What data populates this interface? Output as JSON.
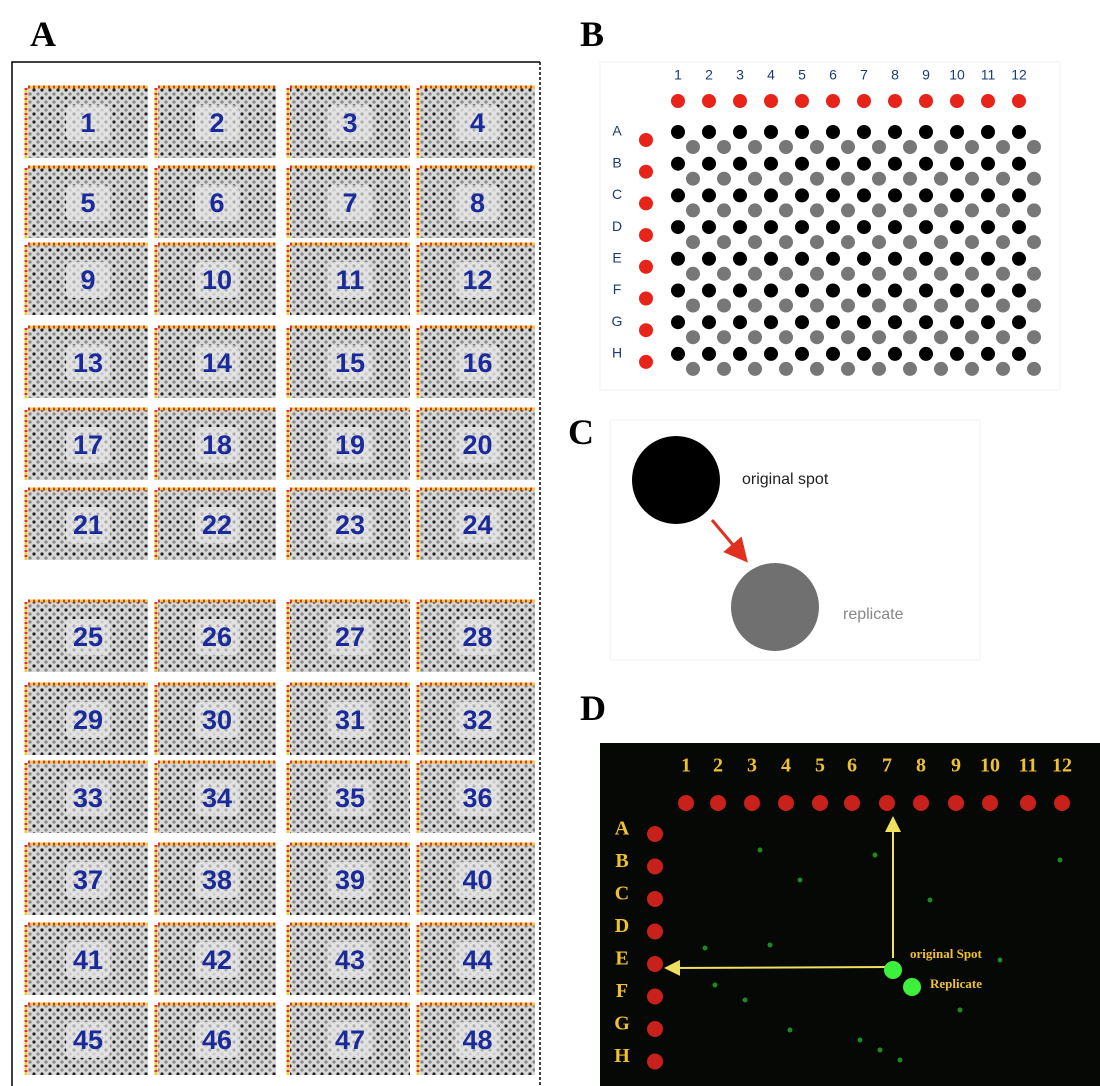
{
  "panels": {
    "A": {
      "label": "A",
      "blocks": [
        1,
        2,
        3,
        4,
        5,
        6,
        7,
        8,
        9,
        10,
        11,
        12,
        13,
        14,
        15,
        16,
        17,
        18,
        19,
        20,
        21,
        22,
        23,
        24,
        25,
        26,
        27,
        28,
        29,
        30,
        31,
        32,
        33,
        34,
        35,
        36,
        37,
        38,
        39,
        40,
        41,
        42,
        43,
        44,
        45,
        46,
        47,
        48
      ]
    },
    "B": {
      "label": "B",
      "columns": [
        1,
        2,
        3,
        4,
        5,
        6,
        7,
        8,
        9,
        10,
        11,
        12
      ],
      "rows": [
        "A",
        "B",
        "C",
        "D",
        "E",
        "F",
        "G",
        "H"
      ]
    },
    "C": {
      "label": "C",
      "original": "original spot",
      "replicate": "replicate"
    },
    "D": {
      "label": "D",
      "columns": [
        1,
        2,
        3,
        4,
        5,
        6,
        7,
        8,
        9,
        10,
        11,
        12
      ],
      "rows": [
        "A",
        "B",
        "C",
        "D",
        "E",
        "F",
        "G",
        "H"
      ],
      "original": "original Spot",
      "replicate": "Replicate"
    }
  }
}
